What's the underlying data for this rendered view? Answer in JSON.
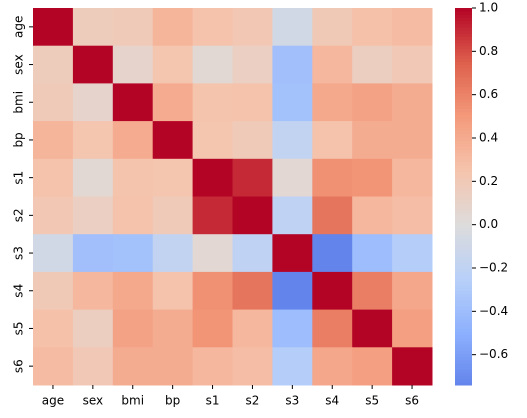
{
  "chart_data": {
    "type": "heatmap",
    "categories": [
      "age",
      "sex",
      "bmi",
      "bp",
      "s1",
      "s2",
      "s3",
      "s4",
      "s5",
      "s6"
    ],
    "values": [
      [
        1,
        0.17,
        0.19,
        0.34,
        0.26,
        0.22,
        -0.08,
        0.2,
        0.27,
        0.3
      ],
      [
        0.17,
        1,
        0.09,
        0.24,
        0.04,
        0.14,
        -0.38,
        0.33,
        0.15,
        0.21
      ],
      [
        0.19,
        0.09,
        1,
        0.4,
        0.25,
        0.26,
        -0.37,
        0.41,
        0.45,
        0.39
      ],
      [
        0.34,
        0.24,
        0.4,
        1,
        0.24,
        0.19,
        -0.18,
        0.26,
        0.39,
        0.39
      ],
      [
        0.26,
        0.04,
        0.25,
        0.24,
        1,
        0.9,
        0.05,
        0.54,
        0.52,
        0.33
      ],
      [
        0.22,
        0.14,
        0.26,
        0.19,
        0.9,
        1,
        -0.2,
        0.66,
        0.32,
        0.29
      ],
      [
        -0.08,
        -0.38,
        -0.37,
        -0.18,
        0.05,
        -0.2,
        1,
        -0.74,
        -0.4,
        -0.27
      ],
      [
        0.2,
        0.33,
        0.41,
        0.26,
        0.54,
        0.66,
        -0.74,
        1,
        0.62,
        0.42
      ],
      [
        0.27,
        0.15,
        0.45,
        0.39,
        0.52,
        0.32,
        -0.4,
        0.62,
        1,
        0.47
      ],
      [
        0.3,
        0.21,
        0.39,
        0.39,
        0.33,
        0.29,
        -0.27,
        0.42,
        0.47,
        1
      ]
    ],
    "colormap": "coolwarm",
    "center": 0,
    "clim": [
      -0.74,
      1
    ],
    "cticks": [
      {
        "value": -0.6,
        "label": "−0.6"
      },
      {
        "value": -0.4,
        "label": "−0.4"
      },
      {
        "value": -0.2,
        "label": "−0.2"
      },
      {
        "value": 0,
        "label": "0.0"
      },
      0.2,
      0.4,
      0.6,
      0.8,
      {
        "value": 1,
        "label": "1.0"
      }
    ]
  }
}
